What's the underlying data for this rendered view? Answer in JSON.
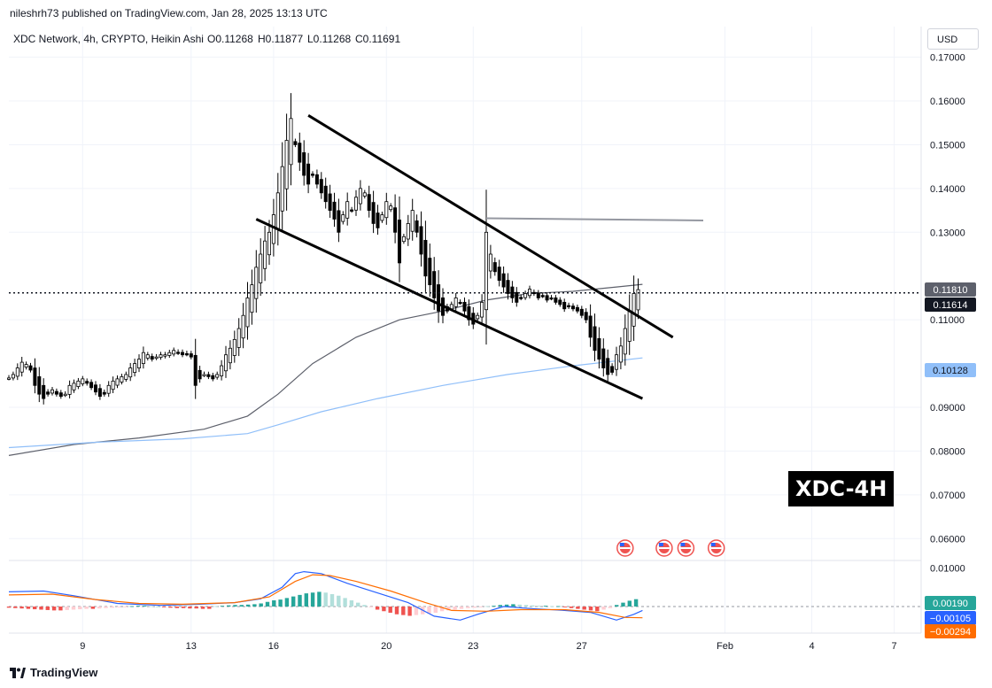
{
  "header": {
    "published_text": "nileshrh73 published on TradingView.com, Jan 28, 2025 13:13 UTC",
    "symbol_info": "XDC Network, 4h, CRYPTO, Heikin Ashi",
    "ohlc": {
      "o": "O0.11268",
      "h": "H0.11877",
      "l": "L0.11268",
      "c": "C0.11691"
    },
    "currency_button": "USD"
  },
  "footer": {
    "brand": "TradingView"
  },
  "badge_text": "XDC-4H",
  "colors": {
    "up": "#ffffff",
    "down": "#000000",
    "ma_slow": "#5d606b",
    "ma_fast": "#90bff9",
    "macd": "#2962ff",
    "signal": "#ff6d00",
    "hist_pos": "#26a69a",
    "hist_neg": "#ef5350",
    "grid": "#f0f3fa",
    "text": "#131722"
  },
  "chart_data": [
    {
      "type": "candlestick",
      "style": "Heikin Ashi",
      "interval": "4h",
      "ylim": [
        0.055,
        0.177
      ],
      "price_ticks": [
        "0.17000",
        "0.16000",
        "0.15000",
        "0.14000",
        "0.13000",
        "0.11000",
        "0.09000",
        "0.08000",
        "0.07000",
        "0.06000"
      ],
      "x_ticks": [
        "9",
        "13",
        "16",
        "20",
        "23",
        "27",
        "Feb",
        "4",
        "7"
      ],
      "last_price": "0.11614",
      "value_labels": [
        {
          "text": "0.11810",
          "kind": "ma_slow"
        },
        {
          "text": "0.11614",
          "kind": "last"
        },
        {
          "text": "0.10128",
          "kind": "ma_fast"
        }
      ],
      "candle_series": [
        0.0967,
        0.0975,
        0.099,
        0.1003,
        0.0998,
        0.0985,
        0.095,
        0.093,
        0.092,
        0.093,
        0.094,
        0.093,
        0.0925,
        0.093,
        0.095,
        0.0955,
        0.096,
        0.0965,
        0.0955,
        0.0945,
        0.0935,
        0.0925,
        0.093,
        0.095,
        0.096,
        0.0965,
        0.097,
        0.0975,
        0.099,
        0.1,
        0.101,
        0.1025,
        0.102,
        0.101,
        0.1015,
        0.102,
        0.102,
        0.1025,
        0.103,
        0.1025,
        0.102,
        0.1022,
        0.1015,
        0.095,
        0.0965,
        0.0975,
        0.097,
        0.0965,
        0.0975,
        0.0995,
        0.102,
        0.1035,
        0.1055,
        0.108,
        0.111,
        0.115,
        0.118,
        0.122,
        0.125,
        0.128,
        0.13,
        0.134,
        0.139,
        0.145,
        0.151,
        0.156,
        0.15,
        0.146,
        0.143,
        0.141,
        0.143,
        0.141,
        0.139,
        0.137,
        0.135,
        0.133,
        0.13,
        0.134,
        0.137,
        0.135,
        0.138,
        0.14,
        0.139,
        0.135,
        0.132,
        0.131,
        0.134,
        0.137,
        0.136,
        0.13,
        0.123,
        0.129,
        0.132,
        0.135,
        0.13,
        0.125,
        0.12,
        0.118,
        0.115,
        0.112,
        0.111,
        0.112,
        0.1135,
        0.115,
        0.114,
        0.112,
        0.11,
        0.109,
        0.111,
        0.114,
        0.13,
        0.125,
        0.121,
        0.119,
        0.1175,
        0.116,
        0.115,
        0.114,
        0.115,
        0.116,
        0.117,
        0.116,
        0.115,
        0.1155,
        0.1145,
        0.115,
        0.114,
        0.1135,
        0.1125,
        0.113,
        0.1125,
        0.112,
        0.111,
        0.11,
        0.106,
        0.103,
        0.101,
        0.099,
        0.0975,
        0.098,
        0.102,
        0.104,
        0.108,
        0.112,
        0.116,
        0.1169
      ],
      "indicators": {
        "ma_slow_points": [
          [
            0,
            0.079
          ],
          [
            15,
            0.0815
          ],
          [
            30,
            0.083
          ],
          [
            45,
            0.085
          ],
          [
            55,
            0.088
          ],
          [
            62,
            0.093
          ],
          [
            70,
            0.1
          ],
          [
            80,
            0.106
          ],
          [
            90,
            0.11
          ],
          [
            100,
            0.112
          ],
          [
            110,
            0.1145
          ],
          [
            120,
            0.116
          ],
          [
            130,
            0.1165
          ],
          [
            140,
            0.1175
          ],
          [
            146,
            0.1181
          ]
        ],
        "ma_fast_points": [
          [
            0,
            0.0808
          ],
          [
            20,
            0.082
          ],
          [
            40,
            0.0828
          ],
          [
            55,
            0.084
          ],
          [
            62,
            0.086
          ],
          [
            72,
            0.089
          ],
          [
            85,
            0.092
          ],
          [
            100,
            0.095
          ],
          [
            115,
            0.0975
          ],
          [
            130,
            0.0995
          ],
          [
            146,
            0.1013
          ]
        ]
      },
      "trendlines": [
        {
          "name": "upper channel",
          "from": [
            69,
            0.1567
          ],
          "to": [
            153,
            0.106
          ]
        },
        {
          "name": "lower channel",
          "from": [
            57,
            0.133
          ],
          "to": [
            146,
            0.092
          ]
        },
        {
          "name": "resistance",
          "from": [
            110,
            0.1332
          ],
          "to": [
            160,
            0.1327
          ]
        }
      ],
      "event_icons": 4
    },
    {
      "type": "macd",
      "value_ticks": [
        "0.01000"
      ],
      "value_labels": [
        {
          "text": "0.00190",
          "kind": "histogram"
        },
        {
          "text": "−0.00105",
          "kind": "macd"
        },
        {
          "text": "−0.00294",
          "kind": "signal"
        }
      ],
      "ylim": [
        -0.0064,
        0.0112
      ],
      "histogram": [
        -0.0003,
        -0.0004,
        -0.0005,
        -0.0006,
        -0.0007,
        -0.0008,
        -0.0009,
        -0.001,
        -0.001,
        -0.0009,
        -0.0008,
        -0.0007,
        -0.0006,
        -0.0006,
        -0.0005,
        -0.0004,
        -0.0003,
        -0.0002,
        -0.0001,
        0.0001,
        0.0002,
        0.0002,
        0.0001,
        0.0,
        -0.0002,
        -0.0003,
        -0.0004,
        -0.0004,
        -0.0005,
        -0.0005,
        -0.0006,
        -0.0006,
        0.0001,
        0.0002,
        0.0003,
        0.0004,
        0.0004,
        0.0005,
        0.0006,
        0.0008,
        0.0012,
        0.0016,
        0.0018,
        0.0022,
        0.0026,
        0.003,
        0.0034,
        0.0036,
        0.0038,
        0.0036,
        0.0032,
        0.0028,
        0.0022,
        0.0016,
        0.001,
        0.0004,
        -0.0002,
        -0.0008,
        -0.0012,
        -0.0016,
        -0.002,
        -0.0022,
        -0.0024,
        -0.0022,
        -0.002,
        -0.0018,
        -0.0016,
        -0.0012,
        -0.001,
        -0.0008,
        -0.0006,
        -0.0004,
        -0.0003,
        -0.0002,
        0.0001,
        0.0002,
        0.0004,
        0.0005,
        0.0006,
        0.0005,
        0.0004,
        0.0003,
        0.0002,
        0.0002,
        0.0001,
        0.0001,
        -0.0002,
        -0.0004,
        -0.0006,
        -0.0008,
        -0.001,
        -0.0012,
        -0.0008,
        -0.0004,
        0.0004,
        0.001,
        0.0015,
        0.0019
      ],
      "macd_points": [
        [
          0,
          0.0038
        ],
        [
          8,
          0.004
        ],
        [
          15,
          0.0028
        ],
        [
          25,
          0.0008
        ],
        [
          35,
          0.0003
        ],
        [
          44,
          0.0006
        ],
        [
          52,
          0.001
        ],
        [
          58,
          0.002
        ],
        [
          63,
          0.005
        ],
        [
          66,
          0.0085
        ],
        [
          68,
          0.009
        ],
        [
          72,
          0.0085
        ],
        [
          78,
          0.006
        ],
        [
          85,
          0.0035
        ],
        [
          92,
          0.001
        ],
        [
          98,
          -0.0025
        ],
        [
          104,
          -0.0035
        ],
        [
          108,
          -0.002
        ],
        [
          114,
          0.0
        ],
        [
          120,
          -0.0005
        ],
        [
          128,
          -0.001
        ],
        [
          134,
          -0.0015
        ],
        [
          140,
          -0.0035
        ],
        [
          144,
          -0.002
        ],
        [
          146,
          -0.001
        ]
      ],
      "signal_points": [
        [
          0,
          0.003
        ],
        [
          10,
          0.0032
        ],
        [
          20,
          0.0018
        ],
        [
          30,
          0.0008
        ],
        [
          40,
          0.0006
        ],
        [
          52,
          0.001
        ],
        [
          60,
          0.0025
        ],
        [
          66,
          0.0065
        ],
        [
          70,
          0.0082
        ],
        [
          74,
          0.008
        ],
        [
          80,
          0.0065
        ],
        [
          88,
          0.004
        ],
        [
          96,
          0.001
        ],
        [
          102,
          -0.001
        ],
        [
          110,
          -0.0012
        ],
        [
          118,
          -0.0008
        ],
        [
          128,
          -0.0008
        ],
        [
          136,
          -0.0015
        ],
        [
          142,
          -0.0028
        ],
        [
          146,
          -0.0029
        ]
      ]
    }
  ]
}
